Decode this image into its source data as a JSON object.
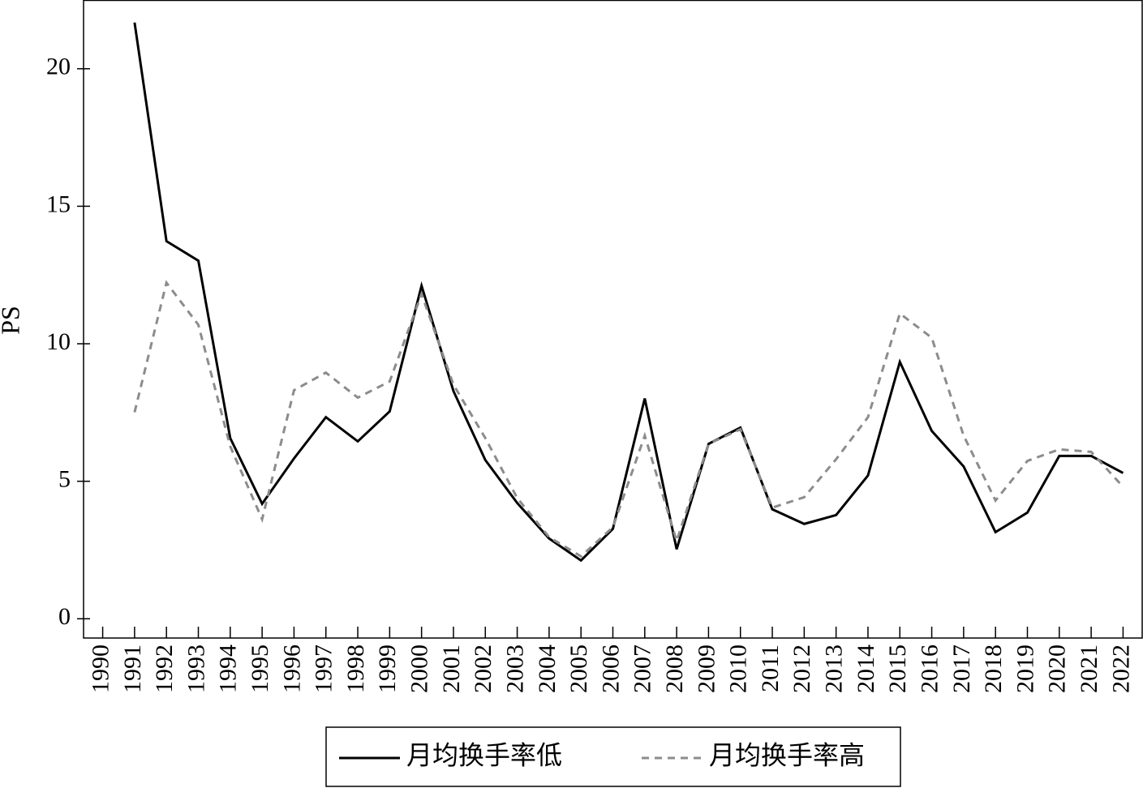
{
  "chart_data": {
    "type": "line",
    "y_label": "PS",
    "x": [
      1991,
      1992,
      1993,
      1994,
      1995,
      1996,
      1997,
      1998,
      1999,
      2000,
      2001,
      2002,
      2003,
      2004,
      2005,
      2006,
      2007,
      2008,
      2009,
      2010,
      2011,
      2012,
      2013,
      2014,
      2015,
      2016,
      2017,
      2018,
      2019,
      2020,
      2021,
      2022
    ],
    "series": [
      {
        "name": "月均换手率低",
        "color": "#000000",
        "line_style": "solid",
        "values": [
          21.68,
          13.73,
          13.02,
          6.57,
          4.18,
          5.83,
          7.33,
          6.45,
          7.54,
          12.11,
          8.28,
          5.77,
          4.21,
          2.92,
          2.12,
          3.27,
          8.01,
          2.53,
          6.36,
          6.95,
          3.98,
          3.45,
          3.77,
          5.21,
          9.34,
          6.83,
          5.54,
          3.15,
          3.86,
          5.92,
          5.92,
          5.3
        ]
      },
      {
        "name": "月均换手率高",
        "color": "#8c8c8c",
        "line_style": "dashed",
        "values": [
          7.51,
          12.22,
          10.69,
          6.27,
          3.62,
          8.31,
          8.95,
          8.04,
          8.63,
          11.81,
          8.51,
          6.57,
          4.39,
          2.97,
          2.27,
          3.33,
          6.66,
          2.83,
          6.36,
          6.89,
          4.04,
          4.42,
          5.8,
          7.33,
          11.1,
          10.22,
          6.66,
          4.3,
          5.74,
          6.16,
          6.07,
          4.8
        ]
      }
    ],
    "xlim": [
      1989.4,
      2022.6
    ],
    "xticks": [
      1990,
      1991,
      1992,
      1993,
      1994,
      1995,
      1996,
      1997,
      1998,
      1999,
      2000,
      2001,
      2002,
      2003,
      2004,
      2005,
      2006,
      2007,
      2008,
      2009,
      2010,
      2011,
      2012,
      2013,
      2014,
      2015,
      2016,
      2017,
      2018,
      2019,
      2020,
      2021,
      2022
    ],
    "ylim": [
      -0.7,
      22.5
    ],
    "yticks": [
      0,
      5,
      10,
      15,
      20
    ],
    "legend": "bottom"
  }
}
